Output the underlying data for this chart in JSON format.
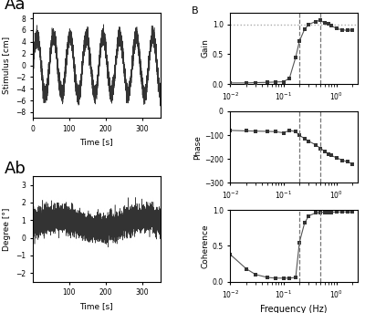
{
  "xlabel_time": "Time [s]",
  "ylabel_Aa": "Stimulus [cm]",
  "ylabel_Ab": "Degree [°]",
  "xlabel_freq": "Frequency (Hz)",
  "ylabel_gain": "Gain",
  "ylabel_phase": "Phase",
  "ylabel_coherence": "Coherence",
  "Aa_xlim": [
    0,
    350
  ],
  "Aa_ylim": [
    -9,
    9
  ],
  "Aa_yticks": [
    -8,
    -6,
    -4,
    -2,
    0,
    2,
    4,
    6,
    8
  ],
  "Aa_xticks": [
    0,
    100,
    200,
    300
  ],
  "Ab_xlim": [
    0,
    350
  ],
  "Ab_ylim": [
    -2.5,
    3.5
  ],
  "Ab_yticks": [
    -2,
    -1,
    0,
    1,
    2,
    3
  ],
  "Ab_xticks": [
    100,
    200,
    300
  ],
  "gain_ylim": [
    0,
    1.2
  ],
  "gain_yticks": [
    0,
    0.5,
    1
  ],
  "phase_ylim": [
    -300,
    0
  ],
  "phase_yticks": [
    -300,
    -200,
    -100,
    0
  ],
  "coherence_ylim": [
    0,
    1
  ],
  "coherence_yticks": [
    0,
    0.5,
    1
  ],
  "freq_xlim": [
    0.01,
    2.5
  ],
  "dashed_line1": 0.2,
  "dashed_line2": 0.5,
  "bg_color": "#ffffff",
  "line_color": "#555555",
  "marker_color": "#333333",
  "freqs": [
    0.01,
    0.02,
    0.03,
    0.05,
    0.07,
    0.1,
    0.13,
    0.17,
    0.2,
    0.25,
    0.3,
    0.4,
    0.5,
    0.6,
    0.7,
    0.8,
    1.0,
    1.3,
    1.6,
    2.0
  ],
  "gain": [
    0.02,
    0.02,
    0.025,
    0.03,
    0.035,
    0.04,
    0.1,
    0.45,
    0.72,
    0.92,
    1.0,
    1.05,
    1.07,
    1.02,
    1.01,
    0.98,
    0.93,
    0.91,
    0.9,
    0.91
  ],
  "phase": [
    -80,
    -82,
    -83,
    -84,
    -85,
    -90,
    -80,
    -85,
    -100,
    -115,
    -125,
    -140,
    -155,
    -168,
    -178,
    -185,
    -195,
    -205,
    -212,
    -220
  ],
  "coherence": [
    0.38,
    0.18,
    0.1,
    0.06,
    0.05,
    0.05,
    0.05,
    0.06,
    0.55,
    0.82,
    0.92,
    0.96,
    0.97,
    0.97,
    0.97,
    0.97,
    0.975,
    0.975,
    0.975,
    0.975
  ]
}
